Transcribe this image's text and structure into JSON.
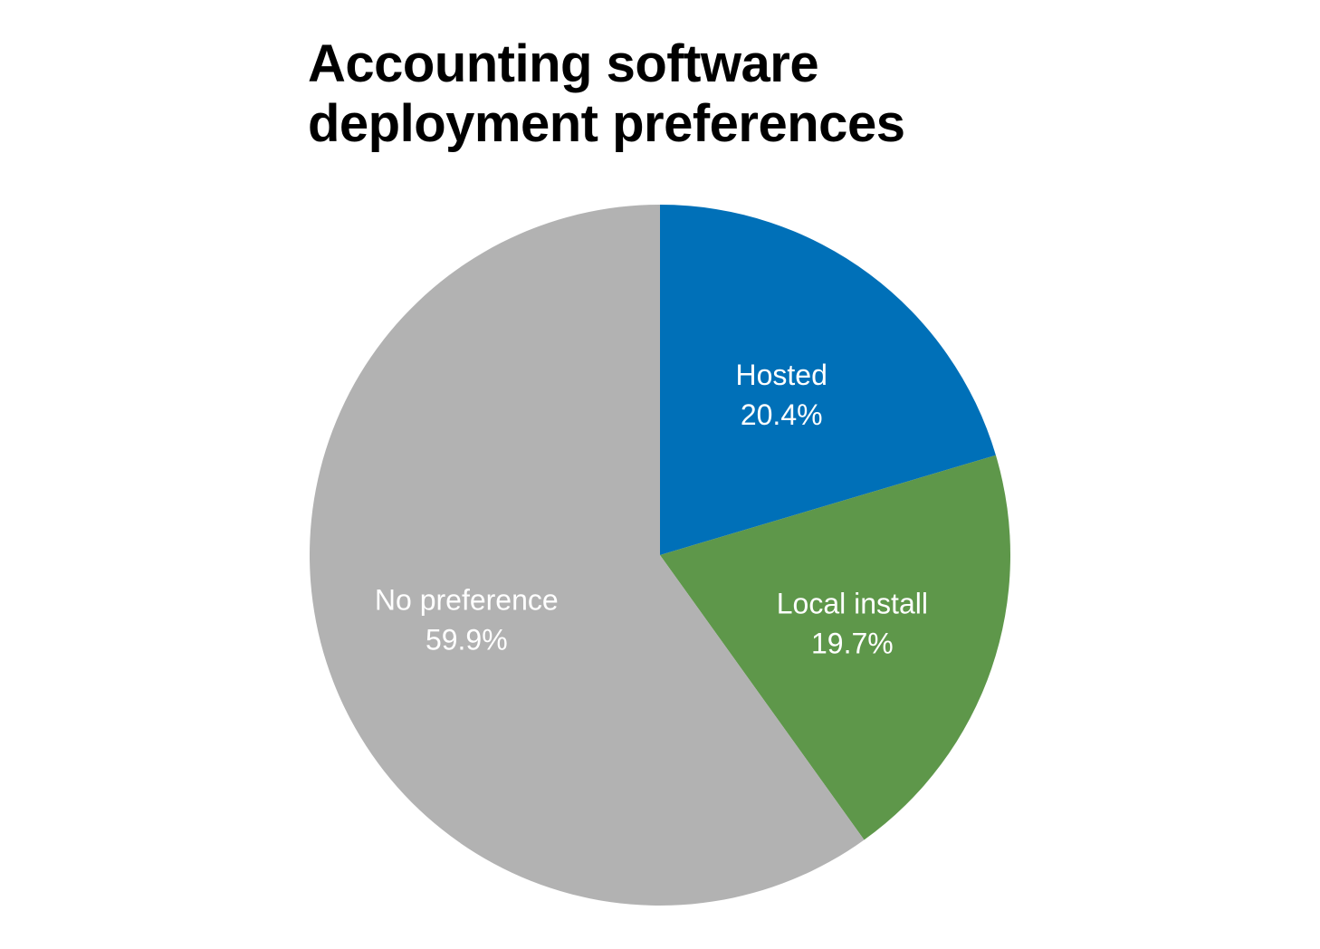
{
  "chart_data": {
    "type": "pie",
    "title": "Accounting software deployment preferences",
    "title_lines": [
      "Accounting software",
      "deployment preferences"
    ],
    "slices": [
      {
        "label": "Hosted",
        "value": 20.4,
        "value_label": "20.4%",
        "color": "#0070b8"
      },
      {
        "label": "Local install",
        "value": 19.7,
        "value_label": "19.7%",
        "color": "#5e974a"
      },
      {
        "label": "No preference",
        "value": 59.9,
        "value_label": "59.9%",
        "color": "#b2b2b2"
      }
    ],
    "start_angle": "12 o'clock",
    "direction": "clockwise",
    "labels_inside": true,
    "legend": "none"
  }
}
